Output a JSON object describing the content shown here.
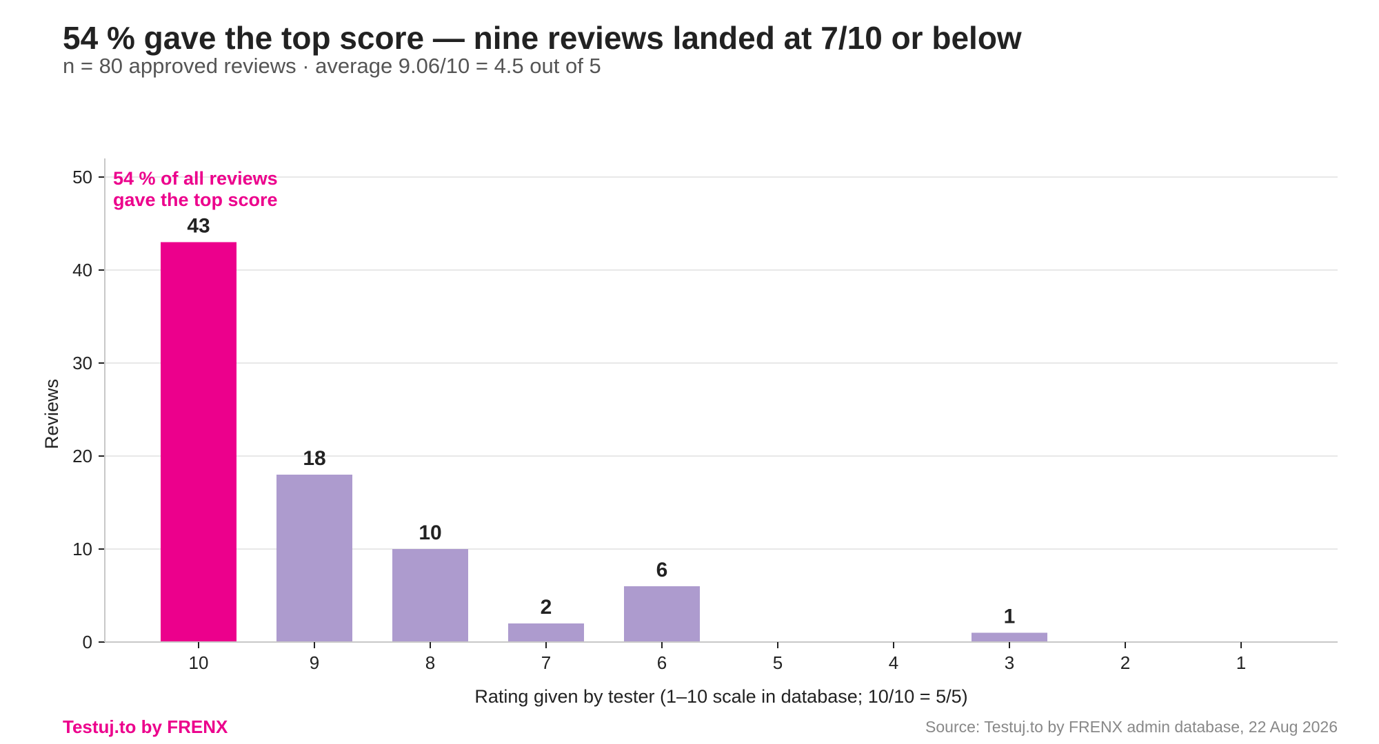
{
  "title": "54 % gave the top score — nine reviews landed at 7/10 or below",
  "subtitle": "n = 80 approved reviews · average 9.06/10 = 4.5 out of 5",
  "brand": "Testuj.to by FRENX",
  "source": "Source: Testuj.to by FRENX admin database, 22 Aug 2026",
  "colors": {
    "highlight": "#ec008c",
    "bar": "#ad9bce",
    "grid": "#e8e8e8",
    "axis": "#c8c8c8"
  },
  "chart_data": {
    "type": "bar",
    "categories": [
      "10",
      "9",
      "8",
      "7",
      "6",
      "5",
      "4",
      "3",
      "2",
      "1"
    ],
    "values": [
      43,
      18,
      10,
      2,
      6,
      0,
      0,
      1,
      0,
      0
    ],
    "highlight_index": 0,
    "xlabel": "Rating given by tester (1–10 scale in database; 10/10 = 5/5)",
    "ylabel": "Reviews",
    "ylim": [
      0,
      52
    ],
    "yticks": [
      0,
      10,
      20,
      30,
      40,
      50
    ],
    "grid": "horizontal",
    "annotation": {
      "lines": [
        "54 % of all reviews",
        "gave the top score"
      ],
      "target_category": "10"
    }
  }
}
